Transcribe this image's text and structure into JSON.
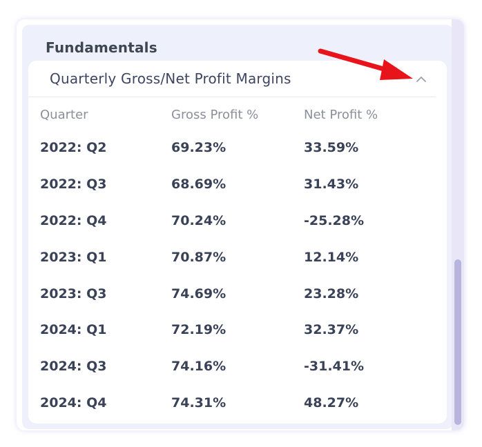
{
  "panel": {
    "title": "Fundamentals"
  },
  "card": {
    "title": "Quarterly Gross/Net Profit Margins",
    "collapse_icon": "chevron-up-icon"
  },
  "table": {
    "headers": [
      "Quarter",
      "Gross Profit %",
      "Net Profit %"
    ],
    "rows": [
      [
        "2022: Q2",
        "69.23%",
        "33.59%"
      ],
      [
        "2022: Q3",
        "68.69%",
        "31.43%"
      ],
      [
        "2022: Q4",
        "70.24%",
        "-25.28%"
      ],
      [
        "2023: Q1",
        "70.87%",
        "12.14%"
      ],
      [
        "2023: Q3",
        "74.69%",
        "23.28%"
      ],
      [
        "2024: Q1",
        "72.19%",
        "32.37%"
      ],
      [
        "2024: Q3",
        "74.16%",
        "-31.41%"
      ],
      [
        "2024: Q4",
        "74.31%",
        "48.27%"
      ]
    ]
  },
  "colors": {
    "panel_bg": "#eef1fb",
    "text_primary": "#3a4258",
    "text_muted": "#8a8f99",
    "annotation_arrow": "#e8141b",
    "scroll_thumb": "#b9b4de"
  }
}
